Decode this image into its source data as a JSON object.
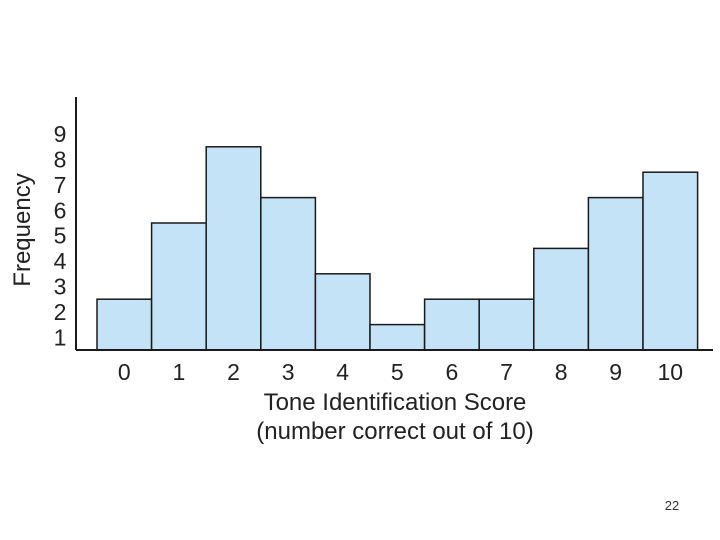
{
  "chart_data": {
    "type": "bar",
    "categories": [
      "0",
      "1",
      "2",
      "3",
      "4",
      "5",
      "6",
      "7",
      "8",
      "9",
      "10"
    ],
    "values": [
      2,
      5,
      8,
      6,
      3,
      1,
      2,
      2,
      4,
      6,
      7
    ],
    "title": "",
    "xlabel": "Tone Identification Score",
    "xlabel_line2": "(number correct out of 10)",
    "ylabel": "Frequency",
    "yticks": [
      "1",
      "2",
      "3",
      "4",
      "5",
      "6",
      "7",
      "8",
      "9"
    ],
    "ylim": [
      0,
      9
    ],
    "grid": false,
    "colors": {
      "bar_fill": "#c5e3f6",
      "bar_stroke": "#1a1a1a",
      "axis": "#1a1a1a"
    }
  },
  "slide": {
    "page_number": "22"
  }
}
